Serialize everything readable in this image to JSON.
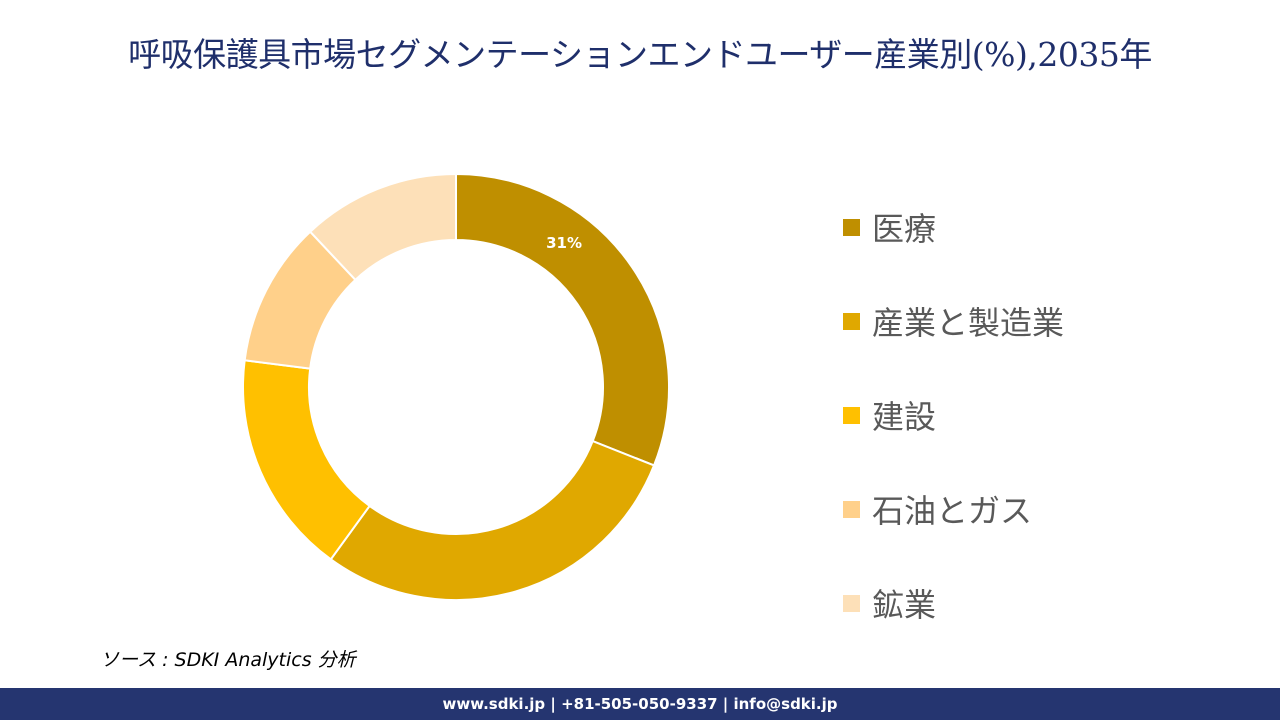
{
  "title": "呼吸保護具市場セグメンテーションエンドユーザー産業別(%),2035年",
  "chart_data": {
    "type": "pie",
    "donut": true,
    "categories": [
      "医療",
      "産業と製造業",
      "建設",
      "石油とガス",
      "鉱業"
    ],
    "values": [
      31,
      29,
      17,
      11,
      12
    ],
    "colors": [
      "#bf8f00",
      "#e0a800",
      "#ffc000",
      "#ffd08a",
      "#fde0b8"
    ],
    "data_labels": [
      "31%",
      "",
      "",
      "",
      ""
    ],
    "legend_position": "right"
  },
  "source": "ソース : SDKI Analytics 分析",
  "footer": "www.sdki.jp | +81-505-050-9337 | info@sdki.jp"
}
